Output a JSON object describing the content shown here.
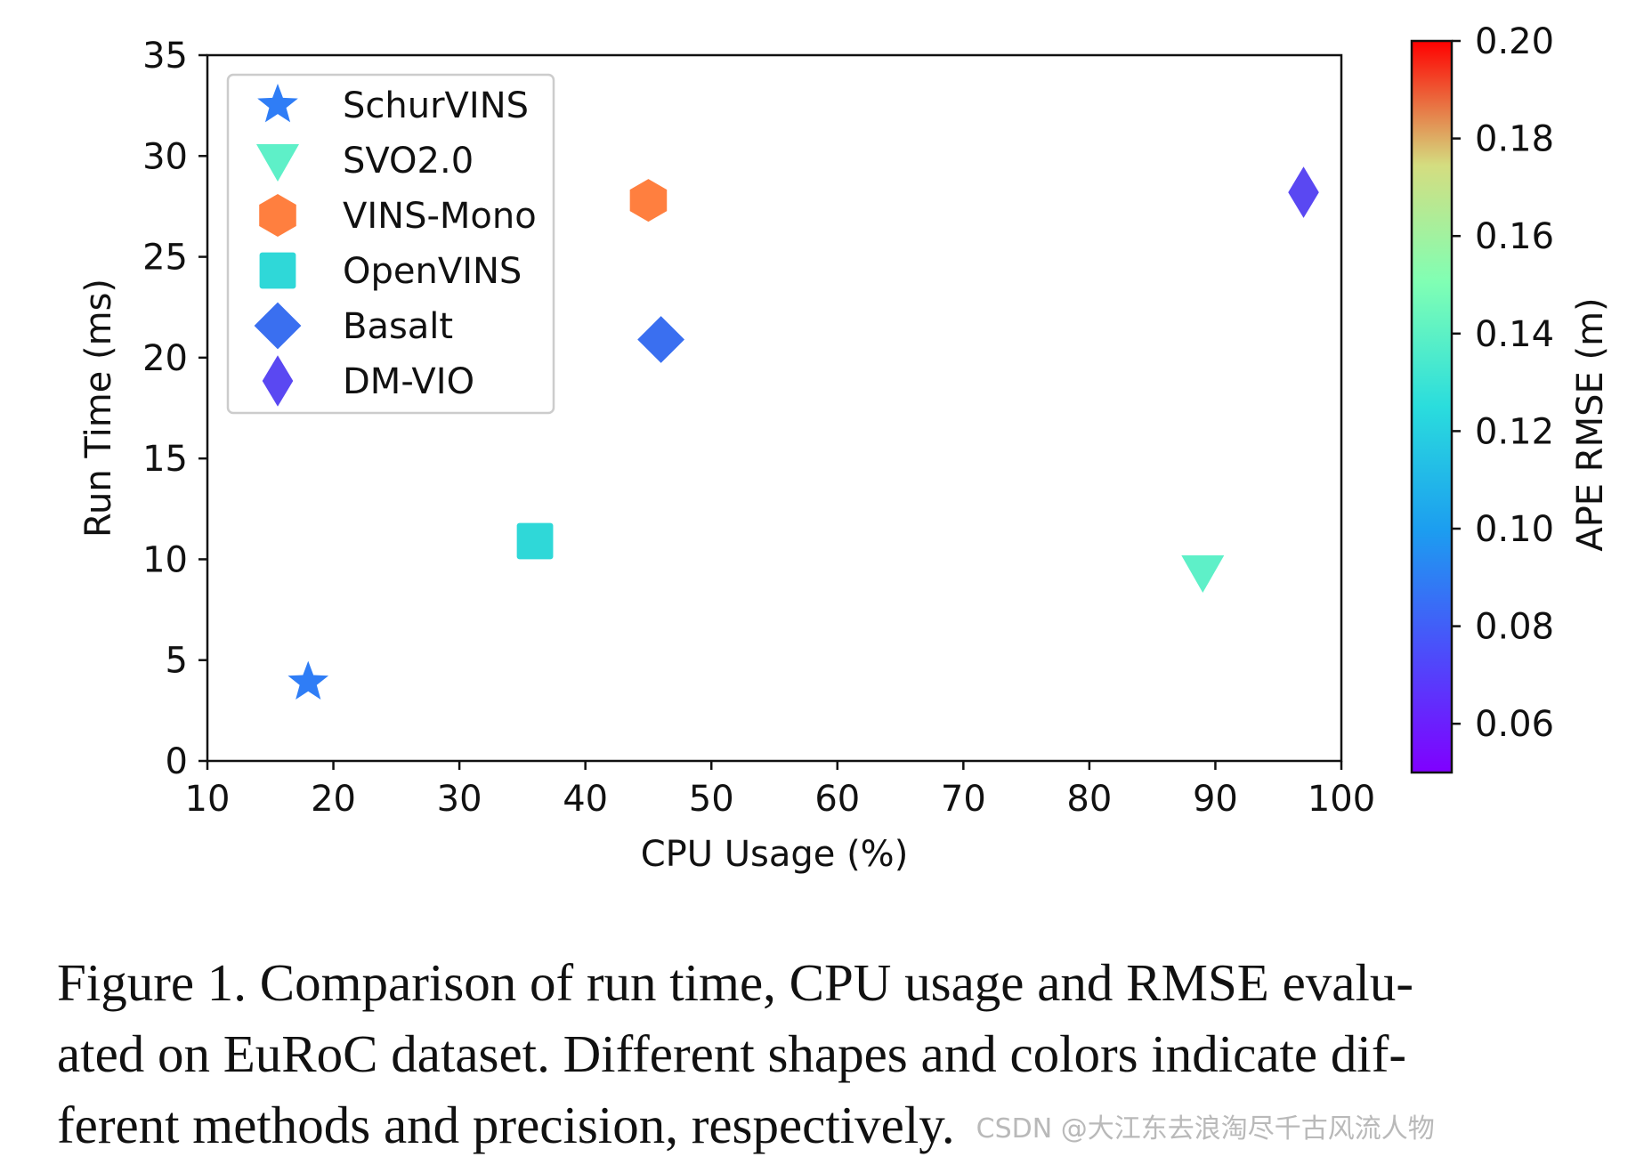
{
  "chart_data": {
    "type": "scatter",
    "title": "",
    "xlabel": "CPU Usage (%)",
    "ylabel": "Run Time (ms)",
    "xlim": [
      10,
      100
    ],
    "ylim": [
      0,
      35
    ],
    "xticks": [
      10,
      20,
      30,
      40,
      50,
      60,
      70,
      80,
      90,
      100
    ],
    "yticks": [
      0,
      5,
      10,
      15,
      20,
      25,
      30,
      35
    ],
    "grid": false,
    "legend_position": "top-left",
    "points": [
      {
        "name": "SchurVINS",
        "marker": "star",
        "x": 18,
        "y": 3.9,
        "color": "#2f7df6"
      },
      {
        "name": "SVO2.0",
        "marker": "triangle-down",
        "x": 89,
        "y": 9.4,
        "color": "#5ef0c8"
      },
      {
        "name": "VINS-Mono",
        "marker": "hexagon",
        "x": 45,
        "y": 27.8,
        "color": "#ff7f3f"
      },
      {
        "name": "OpenVINS",
        "marker": "square",
        "x": 36,
        "y": 10.9,
        "color": "#2fd8d8"
      },
      {
        "name": "Basalt",
        "marker": "diamond",
        "x": 46,
        "y": 20.9,
        "color": "#3a6ff0"
      },
      {
        "name": "DM-VIO",
        "marker": "thin-diamond",
        "x": 97,
        "y": 28.2,
        "color": "#5a48f2"
      }
    ],
    "colorbar": {
      "label": "APE RMSE (m)",
      "range": [
        0.05,
        0.2
      ],
      "ticks": [
        "0.06",
        "0.08",
        "0.10",
        "0.12",
        "0.14",
        "0.16",
        "0.18",
        "0.20"
      ],
      "colormap": "rainbow"
    }
  },
  "caption": {
    "lines": [
      "Figure 1. Comparison of run time, CPU usage and RMSE evalu-",
      "ated on EuRoC dataset. Different shapes and colors indicate dif-",
      "ferent methods and precision, respectively."
    ],
    "watermark": "CSDN @大江东去浪淘尽千古风流人物"
  }
}
